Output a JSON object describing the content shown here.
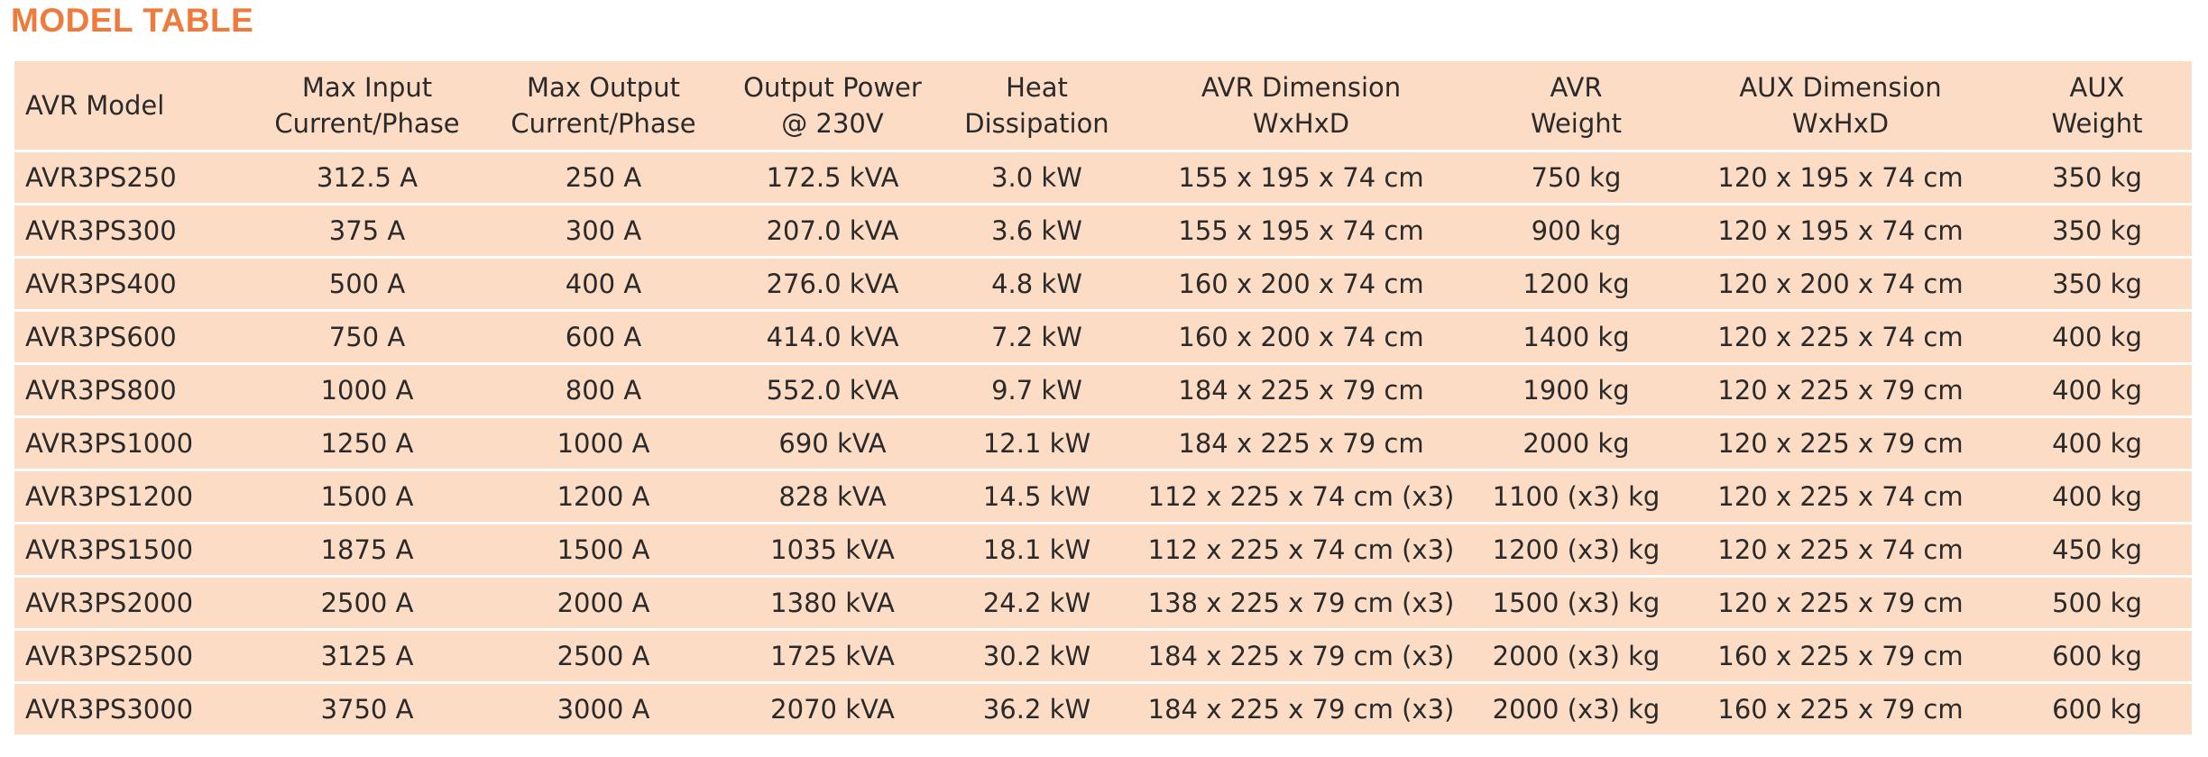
{
  "title": "MODEL TABLE",
  "table": {
    "header": [
      "AVR Model",
      "Max Input\nCurrent/Phase",
      "Max Output\nCurrent/Phase",
      "Output Power\n@ 230V",
      "Heat\nDissipation",
      "AVR Dimension\nWxHxD",
      "AVR\nWeight",
      "AUX Dimension\nWxHxD",
      "AUX\nWeight"
    ],
    "rows": [
      [
        "AVR3PS250",
        "312.5 A",
        "250 A",
        "172.5 kVA",
        "3.0 kW",
        "155 x 195 x 74 cm",
        "750 kg",
        "120 x 195 x 74 cm",
        "350 kg"
      ],
      [
        "AVR3PS300",
        "375 A",
        "300 A",
        "207.0 kVA",
        "3.6 kW",
        "155 x 195 x 74 cm",
        "900 kg",
        "120 x 195 x 74 cm",
        "350 kg"
      ],
      [
        "AVR3PS400",
        "500 A",
        "400 A",
        "276.0 kVA",
        "4.8 kW",
        "160 x 200 x 74 cm",
        "1200 kg",
        "120 x 200 x 74 cm",
        "350 kg"
      ],
      [
        "AVR3PS600",
        "750 A",
        "600 A",
        "414.0 kVA",
        "7.2 kW",
        "160 x 200 x 74 cm",
        "1400 kg",
        "120 x 225 x 74 cm",
        "400 kg"
      ],
      [
        "AVR3PS800",
        "1000 A",
        "800 A",
        "552.0 kVA",
        "9.7 kW",
        "184 x 225 x 79 cm",
        "1900 kg",
        "120 x 225 x 79 cm",
        "400 kg"
      ],
      [
        "AVR3PS1000",
        "1250 A",
        "1000 A",
        "690 kVA",
        "12.1 kW",
        "184 x 225 x 79 cm",
        "2000 kg",
        "120 x 225 x 79 cm",
        "400 kg"
      ],
      [
        "AVR3PS1200",
        "1500 A",
        "1200 A",
        "828 kVA",
        "14.5 kW",
        "112 x 225 x 74 cm (x3)",
        "1100 (x3) kg",
        "120 x 225 x 74 cm",
        "400 kg"
      ],
      [
        "AVR3PS1500",
        "1875 A",
        "1500 A",
        "1035 kVA",
        "18.1 kW",
        "112 x 225 x 74 cm (x3)",
        "1200 (x3) kg",
        "120 x 225 x 74 cm",
        "450 kg"
      ],
      [
        "AVR3PS2000",
        "2500 A",
        "2000 A",
        "1380 kVA",
        "24.2 kW",
        "138 x 225 x 79 cm (x3)",
        "1500 (x3) kg",
        "120 x 225 x 79 cm",
        "500 kg"
      ],
      [
        "AVR3PS2500",
        "3125 A",
        "2500 A",
        "1725 kVA",
        "30.2 kW",
        "184 x 225 x 79 cm (x3)",
        "2000 (x3) kg",
        "160 x 225 x 79 cm",
        "600 kg"
      ],
      [
        "AVR3PS3000",
        "3750 A",
        "3000 A",
        "2070 kVA",
        "36.2 kW",
        "184 x 225 x 79 cm (x3)",
        "2000 (x3) kg",
        "160 x 225 x 79 cm",
        "600 kg"
      ]
    ]
  }
}
